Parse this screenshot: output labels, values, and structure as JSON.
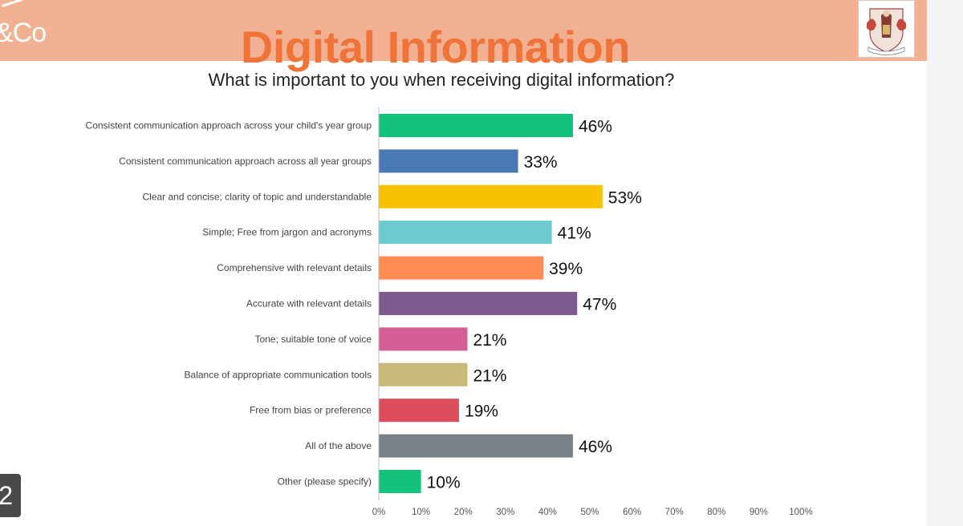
{
  "header": {
    "brand": "&Co",
    "title": "Digital Information",
    "subtitle": "What is important to you when receiving digital information?"
  },
  "slide_number": "2",
  "chart_data": {
    "type": "bar",
    "orientation": "horizontal",
    "categories": [
      "Consistent communication approach across your child's year group",
      "Consistent communication approach across all year groups",
      "Clear and concise; clarity of topic and understandable",
      "Simple; Free from jargon and acronyms",
      "Comprehensive with relevant details",
      "Accurate with relevant details",
      "Tone; suitable tone of voice",
      "Balance of appropriate communication tools",
      "Free from bias or preference",
      "All of the above",
      "Other (please specify)"
    ],
    "values": [
      46,
      33,
      53,
      41,
      39,
      47,
      21,
      21,
      19,
      46,
      10
    ],
    "value_labels": [
      "46%",
      "33%",
      "53%",
      "41%",
      "39%",
      "47%",
      "21%",
      "21%",
      "19%",
      "46%",
      "10%"
    ],
    "colors": [
      "#12c27a",
      "#4a78b4",
      "#f8c102",
      "#6ccad1",
      "#fe8c53",
      "#7e5a8f",
      "#d55f94",
      "#c8b979",
      "#de4d5c",
      "#7a8186",
      "#12c27a"
    ],
    "xlim": [
      0,
      100
    ],
    "xticks": [
      "0%",
      "10%",
      "20%",
      "30%",
      "40%",
      "50%",
      "60%",
      "70%",
      "80%",
      "90%",
      "100%"
    ],
    "grid": false,
    "legend": "none"
  }
}
